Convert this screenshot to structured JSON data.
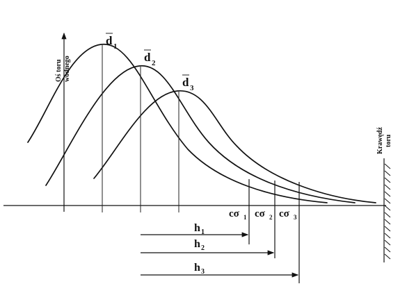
{
  "axis_label_line1": "Oś toru",
  "axis_label_line2": "wodnego",
  "edge_label_line1": "Krawędź",
  "edge_label_line2": "toru",
  "curves": [
    {
      "name": "d",
      "sub": "1"
    },
    {
      "name": "d",
      "sub": "2"
    },
    {
      "name": "d",
      "sub": "3"
    }
  ],
  "sigma_labels": [
    {
      "prefix": "cσ",
      "sub": "1"
    },
    {
      "prefix": "cσ",
      "sub": "2"
    },
    {
      "prefix": "cσ",
      "sub": "3"
    }
  ],
  "distances": [
    {
      "name": "h",
      "sub": "1"
    },
    {
      "name": "h",
      "sub": "2"
    },
    {
      "name": "h",
      "sub": "3"
    }
  ],
  "colors": {
    "ink": "#111111",
    "paper": "#ffffff"
  }
}
